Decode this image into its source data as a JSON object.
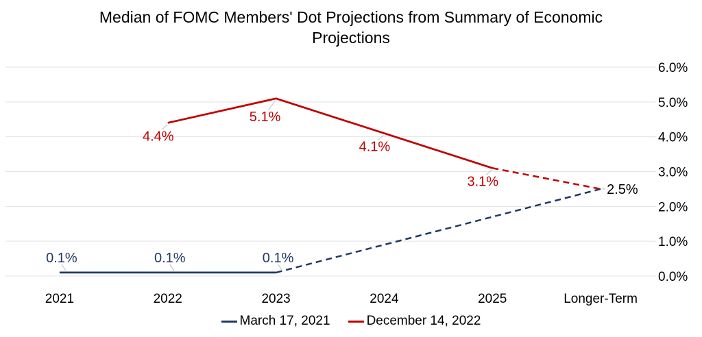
{
  "title": "Median of FOMC Members' Dot Projections from Summary of Economic Projections",
  "colors": {
    "gridline": "#E2E2E2",
    "leader": "#BFBFBF",
    "axis_text": "#000000",
    "series1": "#1F3864",
    "series2": "#C00000"
  },
  "chart_data": {
    "type": "line",
    "title": "Median of FOMC Members' Dot Projections from Summary of Economic Projections",
    "categories": [
      "2021",
      "2022",
      "2023",
      "2024",
      "2025",
      "Longer-Term"
    ],
    "y_axis": {
      "side": "right",
      "min": 0,
      "max": 6,
      "ticks": [
        {
          "value": 0,
          "label": "0.0%"
        },
        {
          "value": 1,
          "label": "1.0%"
        },
        {
          "value": 2,
          "label": "2.0%"
        },
        {
          "value": 3,
          "label": "3.0%"
        },
        {
          "value": 4,
          "label": "4.0%"
        },
        {
          "value": 5,
          "label": "5.0%"
        },
        {
          "value": 6,
          "label": "6.0%"
        }
      ]
    },
    "grid": true,
    "legend_position": "bottom",
    "series": [
      {
        "name": "March 17, 2021",
        "color": "#1F3864",
        "values": [
          0.1,
          0.1,
          0.1,
          null,
          null,
          2.5
        ],
        "solid_from": 0,
        "solid_to": 2,
        "dashed_from": 2,
        "dashed_to": 5,
        "data_labels": [
          {
            "index": 0,
            "text": "0.1%",
            "color": "#1F3864",
            "position": "above"
          },
          {
            "index": 1,
            "text": "0.1%",
            "color": "#1F3864",
            "position": "above"
          },
          {
            "index": 2,
            "text": "0.1%",
            "color": "#1F3864",
            "position": "above"
          },
          {
            "index": 5,
            "text": "2.5%",
            "color": "#000000",
            "position": "right"
          }
        ]
      },
      {
        "name": "December 14, 2022",
        "color": "#C00000",
        "values": [
          null,
          4.4,
          5.1,
          4.1,
          3.1,
          2.5
        ],
        "solid_from": 1,
        "solid_to": 4,
        "dashed_from": 4,
        "dashed_to": 5,
        "data_labels": [
          {
            "index": 1,
            "text": "4.4%",
            "color": "#C00000",
            "position": "below"
          },
          {
            "index": 2,
            "text": "5.1%",
            "color": "#C00000",
            "position": "below-far"
          },
          {
            "index": 3,
            "text": "4.1%",
            "color": "#C00000",
            "position": "below"
          },
          {
            "index": 4,
            "text": "3.1%",
            "color": "#C00000",
            "position": "below"
          }
        ]
      }
    ]
  }
}
